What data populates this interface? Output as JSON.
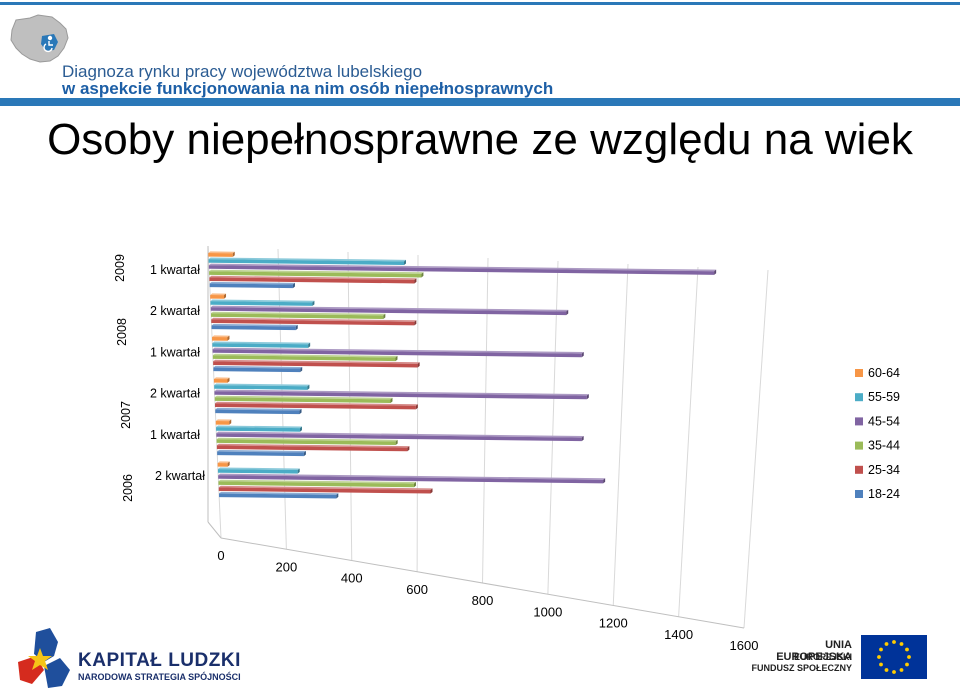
{
  "header": {
    "line1": "Diagnoza rynku pracy województwa lubelskiego",
    "line2": "w aspekcie funkcjonowania na nim osób niepełnosprawnych"
  },
  "page_title": "Osoby niepełnosprawne ze względu na wiek",
  "chart_data": {
    "type": "bar",
    "orientation": "horizontal",
    "three_d": true,
    "categories": [
      {
        "quarter": "2 kwartał",
        "year": "2006"
      },
      {
        "quarter": "1 kwartał",
        "year": "2007"
      },
      {
        "quarter": "2 kwartał",
        "year": "2007"
      },
      {
        "quarter": "1 kwartał",
        "year": "2008"
      },
      {
        "quarter": "2 kwartał",
        "year": "2008"
      },
      {
        "quarter": "1 kwartał",
        "year": "2009"
      }
    ],
    "year_labels": [
      "2006",
      "2007",
      "2008",
      "2009"
    ],
    "series": [
      {
        "name": "18-24",
        "color": "#4f81bd",
        "values": [
          355,
          260,
          250,
          255,
          245,
          240
        ]
      },
      {
        "name": "25-34",
        "color": "#c0504d",
        "values": [
          640,
          570,
          595,
          600,
          590,
          590
        ]
      },
      {
        "name": "35-44",
        "color": "#9bbb59",
        "values": [
          590,
          535,
          520,
          535,
          500,
          610
        ]
      },
      {
        "name": "45-54",
        "color": "#8064a2",
        "values": [
          1160,
          1090,
          1100,
          1080,
          1030,
          1450
        ]
      },
      {
        "name": "55-59",
        "color": "#4bacc6",
        "values": [
          240,
          250,
          275,
          280,
          295,
          560
        ]
      },
      {
        "name": "60-64",
        "color": "#f79646",
        "values": [
          30,
          40,
          40,
          45,
          40,
          70
        ]
      }
    ],
    "xlim": [
      0,
      1600
    ],
    "x_ticks": [
      "0",
      "200",
      "400",
      "600",
      "800",
      "1000",
      "1200",
      "1400",
      "1600"
    ],
    "grid": true,
    "legend_position": "right"
  },
  "footer": {
    "kapital": "KAPITAŁ LUDZKI",
    "kapital_sub": "NARODOWA STRATEGIA SPÓJNOŚCI",
    "eu_line1": "UNIA EUROPEJSKA",
    "eu_line2": "EUROPEJSKI",
    "eu_line3": "FUNDUSZ SPOŁECZNY"
  }
}
